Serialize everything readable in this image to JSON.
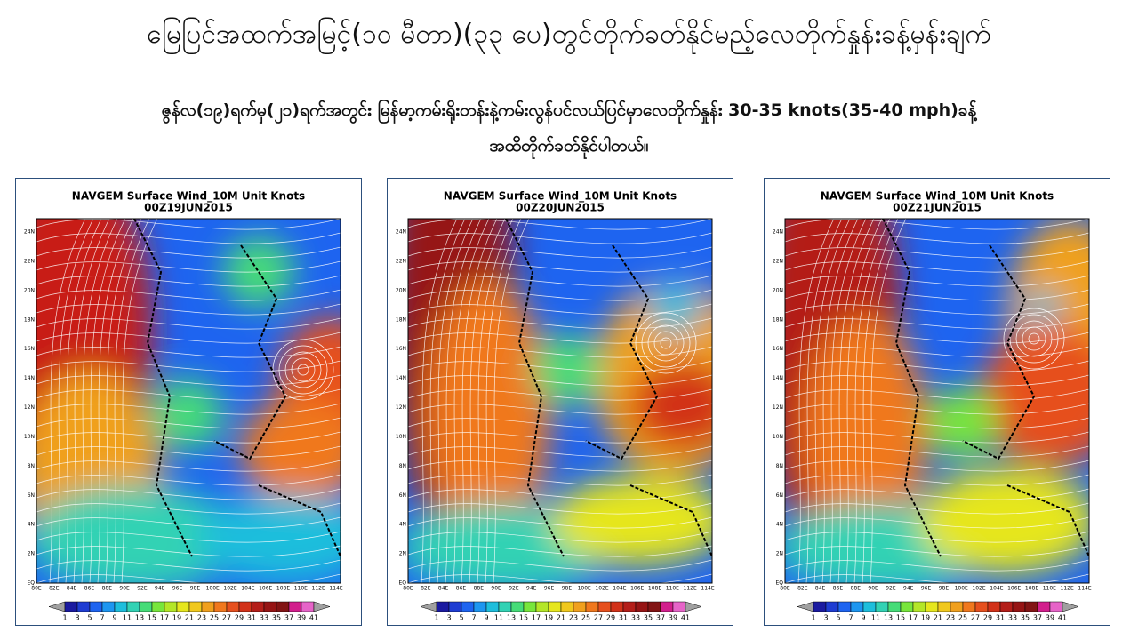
{
  "header": {
    "title": "မြေပြင်အထက်အမြင့်(၁၀ မီတာ)(၃၃ ပေ)တွင်တိုက်ခတ်နိုင်မည့်လေတိုက်နှုန်းခန့်မှန်းချက်",
    "subtitle_lines": [
      "ဇွန်လ(၁၉)ရက်မှ(၂၁)ရက်အတွင်း မြန်မာ့ကမ်းရိုးတန်းနဲ့ကမ်းလွန်ပင်လယ်ပြင်မှာလေတိုက်နှုန်း 30-35 knots(35-40 mph)ခန့်",
      "အထိတိုက်ခတ်နိုင်ပါတယ်။"
    ]
  },
  "panels": [
    {
      "title": "NAVGEM Surface Wind_10M Unit Knots",
      "time": "00Z19JUN2015"
    },
    {
      "title": "NAVGEM Surface Wind_10M Unit Knots",
      "time": "00Z20JUN2015"
    },
    {
      "title": "NAVGEM Surface Wind_10M Unit Knots",
      "time": "00Z21JUN2015"
    }
  ],
  "map_axes": {
    "y_labels": [
      "24N",
      "22N",
      "20N",
      "18N",
      "16N",
      "14N",
      "12N",
      "10N",
      "8N",
      "6N",
      "4N",
      "2N",
      "EQ"
    ],
    "x_labels": [
      "80E",
      "82E",
      "84E",
      "86E",
      "88E",
      "90E",
      "92E",
      "94E",
      "96E",
      "98E",
      "100E",
      "102E",
      "104E",
      "106E",
      "108E",
      "110E",
      "112E",
      "114E"
    ]
  },
  "colorbar": {
    "labels": [
      1,
      3,
      5,
      7,
      9,
      11,
      13,
      15,
      17,
      19,
      21,
      23,
      25,
      27,
      29,
      31,
      33,
      35,
      37,
      39,
      41
    ],
    "colors": [
      "#a0a0a0",
      "#1a1aa0",
      "#1e3cd2",
      "#1e64f0",
      "#1e96f0",
      "#1ebedc",
      "#32d2b4",
      "#46dc78",
      "#78e63c",
      "#b4e628",
      "#e6e61e",
      "#f0c81e",
      "#f0a01e",
      "#f0781e",
      "#e6501e",
      "#d23219",
      "#b41e19",
      "#961414",
      "#821414",
      "#d21e8c",
      "#e664c8",
      "#a0a0a0"
    ]
  }
}
